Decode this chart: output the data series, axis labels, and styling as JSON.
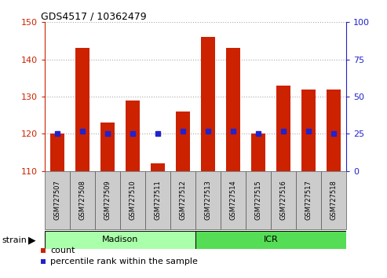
{
  "title": "GDS4517 / 10362479",
  "samples": [
    "GSM727507",
    "GSM727508",
    "GSM727509",
    "GSM727510",
    "GSM727511",
    "GSM727512",
    "GSM727513",
    "GSM727514",
    "GSM727515",
    "GSM727516",
    "GSM727517",
    "GSM727518"
  ],
  "counts": [
    120,
    143,
    123,
    129,
    112,
    126,
    146,
    143,
    120,
    133,
    132,
    132
  ],
  "percentiles": [
    25,
    27,
    25,
    25,
    25,
    27,
    27,
    27,
    25,
    27,
    27,
    25
  ],
  "ylim_left": [
    110,
    150
  ],
  "ylim_right": [
    0,
    100
  ],
  "yticks_left": [
    110,
    120,
    130,
    140,
    150
  ],
  "yticks_right": [
    0,
    25,
    50,
    75,
    100
  ],
  "bar_bottom": 110,
  "bar_color": "#cc2200",
  "dot_color": "#2222cc",
  "grid_color": "#aaaaaa",
  "madison_color": "#aaffaa",
  "icr_color": "#55dd55",
  "strain_label": "strain",
  "madison_label": "Madison",
  "icr_label": "ICR",
  "legend_count": "count",
  "legend_percentile": "percentile rank within the sample",
  "bg_color": "#cccccc"
}
